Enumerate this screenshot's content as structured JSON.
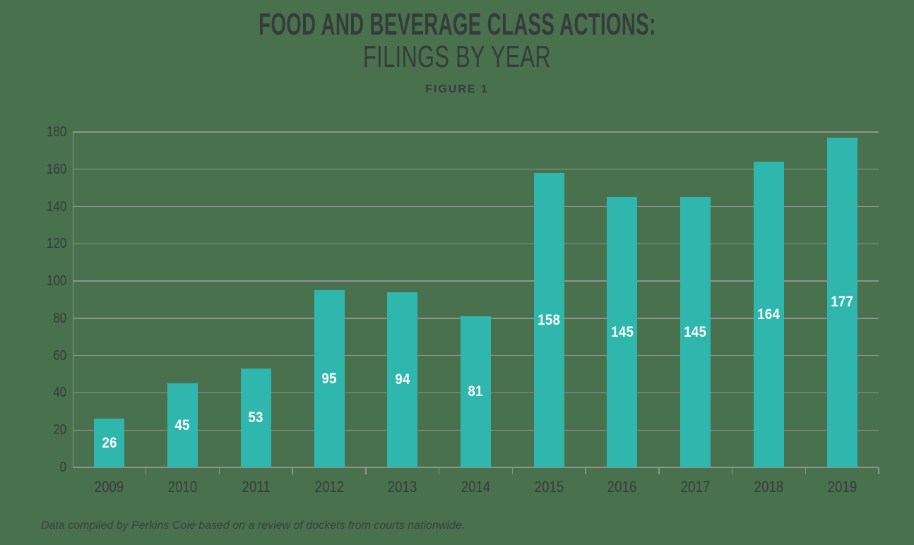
{
  "header": {
    "title_line1": "FOOD AND BEVERAGE CLASS ACTIONS:",
    "title_line2": "FILINGS BY YEAR",
    "figure_label": "FIGURE 1"
  },
  "footnote": {
    "text": "Data compiled by Perkins Coie based on a review of dockets from courts nationwide."
  },
  "chart_data": {
    "type": "bar",
    "title": "FOOD AND BEVERAGE CLASS ACTIONS: FILINGS BY YEAR",
    "subtitle": "FIGURE 1",
    "categories": [
      "2009",
      "2010",
      "2011",
      "2012",
      "2013",
      "2014",
      "2015",
      "2016",
      "2017",
      "2018",
      "2019"
    ],
    "values": [
      26,
      45,
      53,
      95,
      94,
      81,
      158,
      145,
      145,
      164,
      177
    ],
    "value_labels": [
      "26",
      "45",
      "53",
      "95",
      "94",
      "81",
      "158",
      "145",
      "145",
      "164",
      "177"
    ],
    "value_label_position": "centered-inside-bar",
    "xlabel": "",
    "ylabel": "",
    "ylim": [
      0,
      180
    ],
    "yticks": [
      0,
      20,
      40,
      60,
      80,
      100,
      120,
      140,
      160,
      180
    ],
    "grid": "horizontal",
    "legend": "none"
  },
  "colors": {
    "background": "#49714E",
    "bar": "#2FB7AD",
    "grid": "#8F938F",
    "text_dark": "#363C3A",
    "value_label": "#FFFFFF",
    "footnote": "#39413D"
  }
}
